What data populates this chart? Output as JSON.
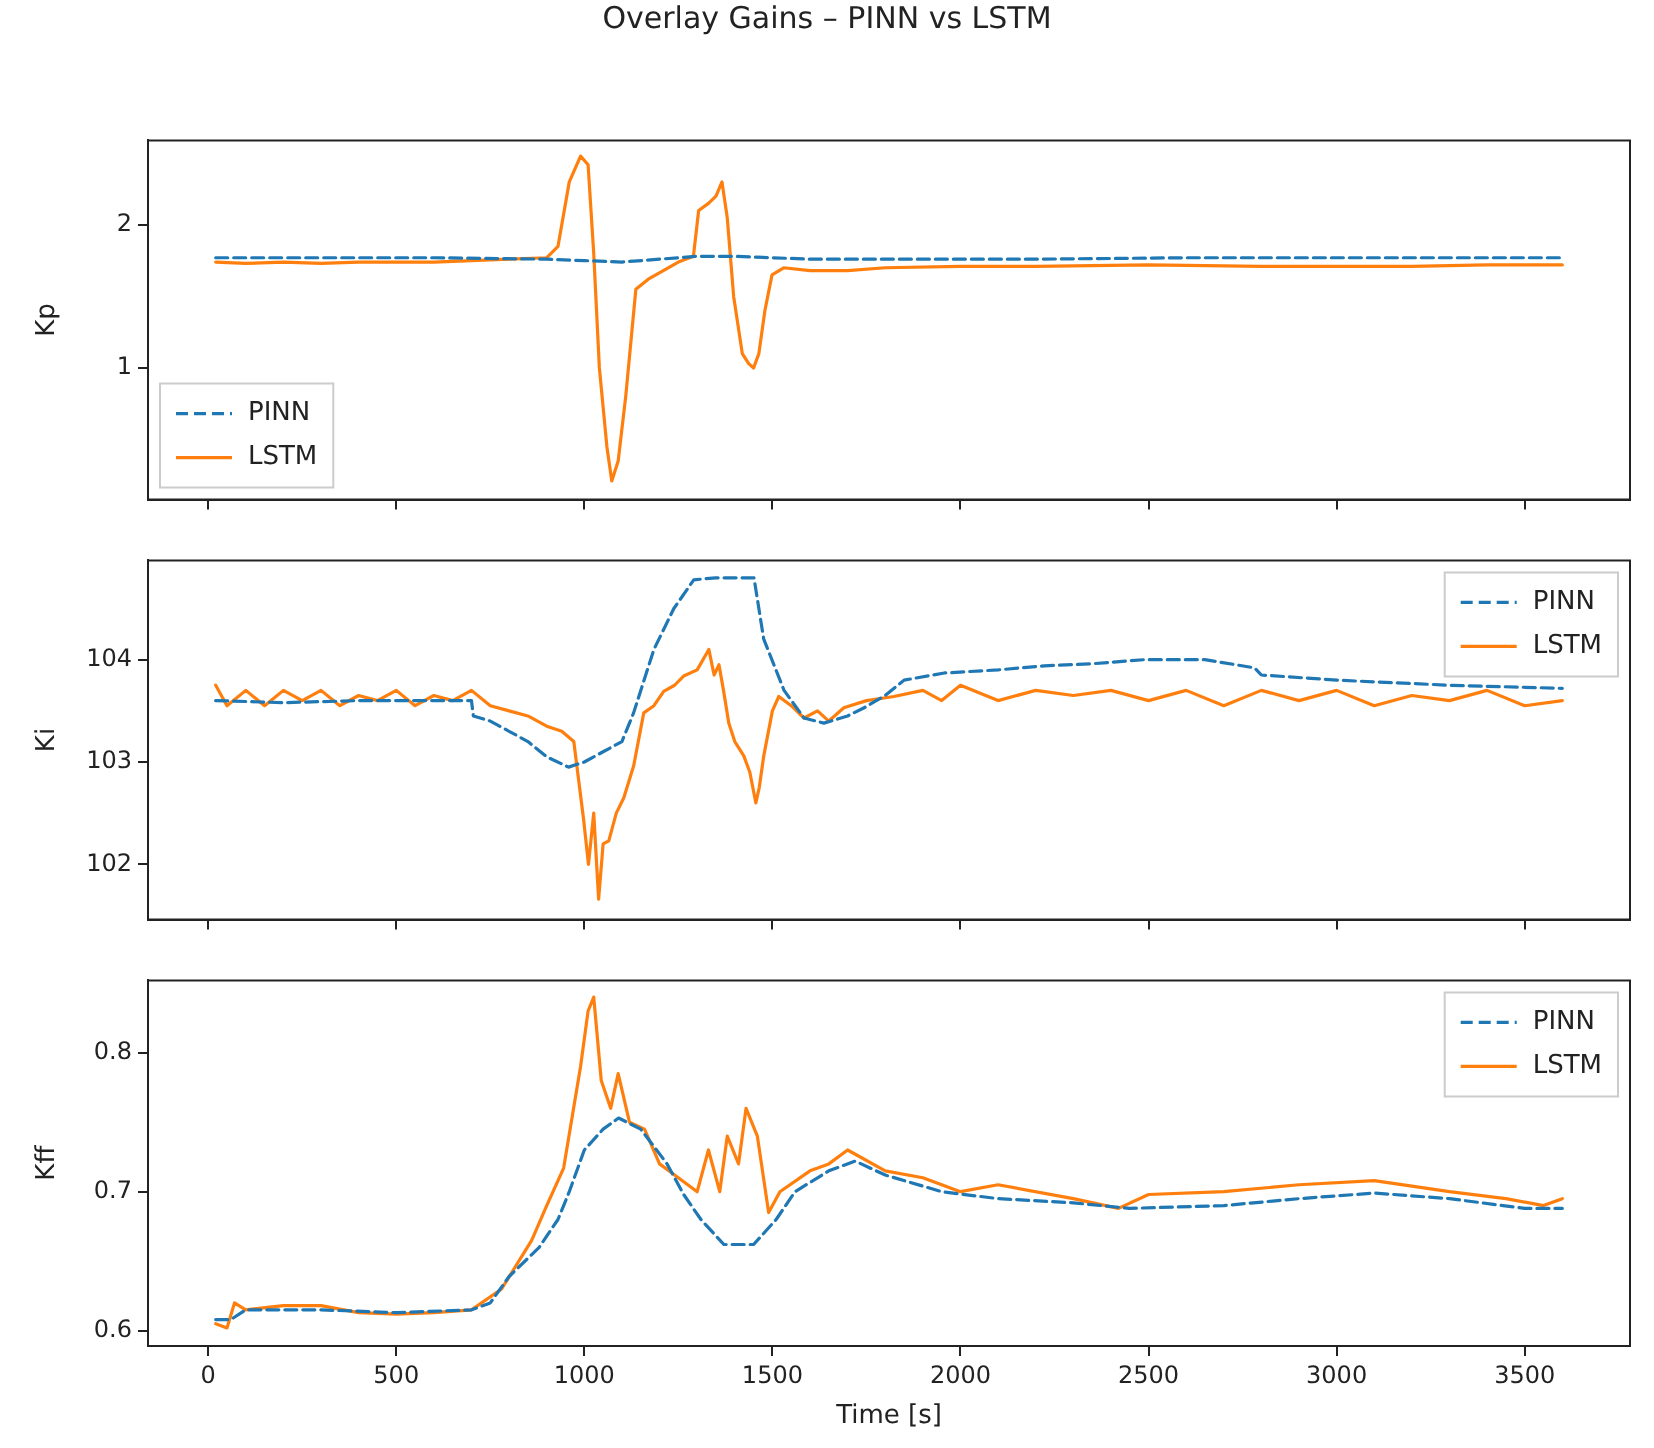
{
  "chart_data": [
    {
      "type": "line",
      "title": "Overlay Gains – PINN vs LSTM",
      "ylabel": "Kp",
      "xlim": [
        -160,
        3780
      ],
      "xticks": [
        0,
        500,
        1000,
        1500,
        2000,
        2500,
        3000,
        3500
      ],
      "ylim": [
        0.08,
        2.59
      ],
      "yticks": [
        1,
        2
      ],
      "tick_labels": "y",
      "grid": false,
      "legend": "bottom left",
      "marker": "none",
      "series": [
        {
          "name": "PINN",
          "color": "#1f77b4",
          "line_style": "dashed",
          "x": [
            20,
            300,
            600,
            900,
            1000,
            1100,
            1200,
            1300,
            1400,
            1500,
            1600,
            1800,
            2200,
            2600,
            3000,
            3400,
            3600
          ],
          "values": [
            1.77,
            1.77,
            1.77,
            1.76,
            1.75,
            1.74,
            1.76,
            1.78,
            1.78,
            1.77,
            1.76,
            1.76,
            1.76,
            1.77,
            1.77,
            1.77,
            1.77
          ]
        },
        {
          "name": "LSTM",
          "color": "#ff7f0e",
          "line_style": "solid",
          "x": [
            20,
            100,
            200,
            300,
            400,
            500,
            600,
            700,
            800,
            900,
            930,
            960,
            990,
            1010,
            1025,
            1040,
            1060,
            1073,
            1090,
            1110,
            1137,
            1170,
            1210,
            1250,
            1290,
            1304,
            1330,
            1350,
            1366,
            1380,
            1397,
            1420,
            1437,
            1450,
            1464,
            1480,
            1499,
            1530,
            1600,
            1700,
            1800,
            2000,
            2200,
            2500,
            2800,
            3000,
            3200,
            3400,
            3600
          ],
          "values": [
            1.74,
            1.73,
            1.74,
            1.73,
            1.74,
            1.74,
            1.74,
            1.75,
            1.76,
            1.77,
            1.85,
            2.3,
            2.48,
            2.42,
            1.8,
            1.0,
            0.45,
            0.21,
            0.35,
            0.8,
            1.55,
            1.62,
            1.68,
            1.74,
            1.78,
            2.1,
            2.15,
            2.2,
            2.3,
            2.05,
            1.5,
            1.1,
            1.03,
            1.0,
            1.1,
            1.4,
            1.65,
            1.7,
            1.68,
            1.68,
            1.7,
            1.71,
            1.71,
            1.72,
            1.71,
            1.71,
            1.71,
            1.72,
            1.72
          ]
        }
      ]
    },
    {
      "type": "line",
      "ylabel": "Ki",
      "xlim": [
        -160,
        3780
      ],
      "xticks": [
        0,
        500,
        1000,
        1500,
        2000,
        2500,
        3000,
        3500
      ],
      "ylim": [
        101.46,
        104.97
      ],
      "yticks": [
        102,
        103,
        104
      ],
      "tick_labels": "y",
      "grid": false,
      "legend": "top right",
      "marker": "none",
      "series": [
        {
          "name": "PINN",
          "color": "#1f77b4",
          "line_style": "dashed",
          "x": [
            20,
            200,
            400,
            600,
            700,
            705,
            750,
            800,
            850,
            900,
            958,
            1000,
            1050,
            1100,
            1131,
            1185,
            1238,
            1291,
            1350,
            1400,
            1451,
            1477,
            1531,
            1584,
            1637,
            1700,
            1744,
            1800,
            1850,
            1957,
            2100,
            2223,
            2350,
            2489,
            2650,
            2782,
            2800,
            3000,
            3300,
            3600
          ],
          "values": [
            103.6,
            103.58,
            103.6,
            103.6,
            103.6,
            103.45,
            103.4,
            103.3,
            103.2,
            103.05,
            102.95,
            103.0,
            103.1,
            103.2,
            103.48,
            104.1,
            104.5,
            104.78,
            104.8,
            104.8,
            104.8,
            104.2,
            103.7,
            103.43,
            103.38,
            103.45,
            103.53,
            103.65,
            103.8,
            103.87,
            103.9,
            103.94,
            103.96,
            104.0,
            104.0,
            103.92,
            103.85,
            103.8,
            103.75,
            103.72
          ]
        },
        {
          "name": "LSTM",
          "color": "#ff7f0e",
          "line_style": "solid",
          "x": [
            20,
            50,
            100,
            150,
            200,
            250,
            300,
            350,
            400,
            450,
            500,
            550,
            600,
            650,
            700,
            750,
            800,
            850,
            900,
            940,
            972,
            998,
            1011,
            1025,
            1038,
            1050,
            1065,
            1085,
            1105,
            1131,
            1158,
            1185,
            1211,
            1240,
            1264,
            1300,
            1331,
            1345,
            1358,
            1370,
            1384,
            1400,
            1424,
            1440,
            1456,
            1465,
            1477,
            1500,
            1517,
            1550,
            1584,
            1620,
            1650,
            1690,
            1750,
            1823,
            1900,
            1950,
            2000,
            2100,
            2200,
            2300,
            2400,
            2500,
            2600,
            2700,
            2800,
            2900,
            3000,
            3100,
            3200,
            3300,
            3400,
            3500,
            3600
          ],
          "values": [
            103.75,
            103.55,
            103.7,
            103.55,
            103.7,
            103.6,
            103.7,
            103.55,
            103.65,
            103.6,
            103.7,
            103.55,
            103.65,
            103.6,
            103.7,
            103.55,
            103.5,
            103.45,
            103.35,
            103.3,
            103.2,
            102.44,
            102.0,
            102.5,
            101.66,
            102.2,
            102.23,
            102.5,
            102.65,
            102.96,
            103.48,
            103.55,
            103.69,
            103.75,
            103.84,
            103.9,
            104.1,
            103.85,
            103.95,
            103.7,
            103.38,
            103.2,
            103.06,
            102.9,
            102.6,
            102.75,
            103.06,
            103.5,
            103.64,
            103.55,
            103.43,
            103.5,
            103.4,
            103.53,
            103.6,
            103.64,
            103.7,
            103.6,
            103.75,
            103.6,
            103.7,
            103.65,
            103.7,
            103.6,
            103.7,
            103.55,
            103.7,
            103.6,
            103.7,
            103.55,
            103.65,
            103.6,
            103.7,
            103.55,
            103.6
          ]
        }
      ]
    },
    {
      "type": "line",
      "ylabel": "Kff",
      "xlabel": "Time [s]",
      "xlim": [
        -160,
        3780
      ],
      "xticks": [
        0,
        500,
        1000,
        1500,
        2000,
        2500,
        3000,
        3500
      ],
      "ylim": [
        0.589,
        0.852
      ],
      "yticks": [
        0.6,
        0.7,
        0.8
      ],
      "grid": false,
      "legend": "top right",
      "marker": "none",
      "series": [
        {
          "name": "PINN",
          "color": "#1f77b4",
          "line_style": "dashed",
          "x": [
            20,
            60,
            100,
            300,
            500,
            700,
            750,
            800,
            880,
            930,
            960,
            1000,
            1050,
            1091,
            1150,
            1220,
            1264,
            1310,
            1371,
            1450,
            1510,
            1560,
            1650,
            1720,
            1800,
            1950,
            2100,
            2300,
            2450,
            2700,
            2900,
            3100,
            3300,
            3500,
            3600
          ],
          "values": [
            0.608,
            0.608,
            0.615,
            0.615,
            0.613,
            0.615,
            0.62,
            0.639,
            0.66,
            0.68,
            0.7,
            0.73,
            0.745,
            0.753,
            0.745,
            0.72,
            0.698,
            0.68,
            0.662,
            0.662,
            0.68,
            0.7,
            0.715,
            0.722,
            0.712,
            0.7,
            0.695,
            0.692,
            0.688,
            0.69,
            0.695,
            0.699,
            0.695,
            0.688,
            0.688
          ]
        },
        {
          "name": "LSTM",
          "color": "#ff7f0e",
          "line_style": "solid",
          "x": [
            20,
            50,
            70,
            100,
            200,
            300,
            400,
            500,
            600,
            700,
            780,
            860,
            900,
            945,
            990,
            1010,
            1025,
            1045,
            1070,
            1090,
            1120,
            1160,
            1200,
            1250,
            1300,
            1330,
            1360,
            1380,
            1410,
            1430,
            1460,
            1490,
            1520,
            1600,
            1650,
            1700,
            1800,
            1900,
            2000,
            2100,
            2300,
            2420,
            2500,
            2700,
            2900,
            3100,
            3300,
            3450,
            3550,
            3600
          ],
          "values": [
            0.605,
            0.602,
            0.62,
            0.615,
            0.618,
            0.618,
            0.613,
            0.612,
            0.613,
            0.615,
            0.63,
            0.665,
            0.69,
            0.717,
            0.79,
            0.83,
            0.84,
            0.78,
            0.76,
            0.785,
            0.75,
            0.745,
            0.72,
            0.71,
            0.7,
            0.73,
            0.7,
            0.74,
            0.72,
            0.76,
            0.74,
            0.685,
            0.7,
            0.715,
            0.72,
            0.73,
            0.715,
            0.71,
            0.7,
            0.705,
            0.695,
            0.688,
            0.698,
            0.7,
            0.705,
            0.708,
            0.7,
            0.695,
            0.69,
            0.695
          ]
        }
      ]
    }
  ]
}
